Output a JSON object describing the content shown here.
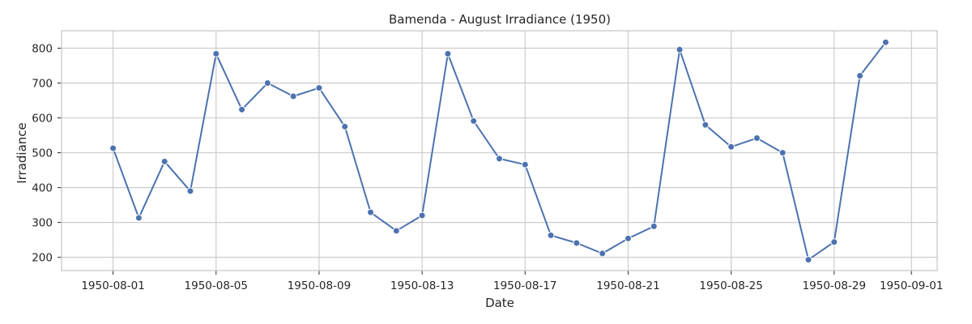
{
  "chart_data": {
    "type": "line",
    "title": "Bamenda - August Irradiance (1950)",
    "xlabel": "Date",
    "ylabel": "Irradiance",
    "x": [
      "1950-08-01",
      "1950-08-02",
      "1950-08-03",
      "1950-08-04",
      "1950-08-05",
      "1950-08-06",
      "1950-08-07",
      "1950-08-08",
      "1950-08-09",
      "1950-08-10",
      "1950-08-11",
      "1950-08-12",
      "1950-08-13",
      "1950-08-14",
      "1950-08-15",
      "1950-08-16",
      "1950-08-17",
      "1950-08-18",
      "1950-08-19",
      "1950-08-20",
      "1950-08-21",
      "1950-08-22",
      "1950-08-23",
      "1950-08-24",
      "1950-08-25",
      "1950-08-26",
      "1950-08-27",
      "1950-08-28",
      "1950-08-29",
      "1950-08-30",
      "1950-08-31"
    ],
    "series": [
      {
        "values": [
          513,
          313,
          475,
          390,
          784,
          624,
          700,
          662,
          686,
          575,
          329,
          276,
          320,
          784,
          591,
          483,
          466,
          263,
          241,
          211,
          254,
          289,
          796,
          580,
          517,
          542,
          500,
          193,
          244,
          721,
          817
        ]
      }
    ],
    "xlim": [
      "1950-07-30",
      "1950-09-02"
    ],
    "ylim": [
      162,
      850
    ],
    "xticks": [
      "1950-08-01",
      "1950-08-05",
      "1950-08-09",
      "1950-08-13",
      "1950-08-17",
      "1950-08-21",
      "1950-08-25",
      "1950-08-29",
      "1950-09-01"
    ],
    "yticks": [
      200,
      300,
      400,
      500,
      600,
      700,
      800
    ],
    "grid": true,
    "colors": {
      "series": "#4c72b0",
      "grid": "#cccccc",
      "text": "#262626"
    }
  }
}
